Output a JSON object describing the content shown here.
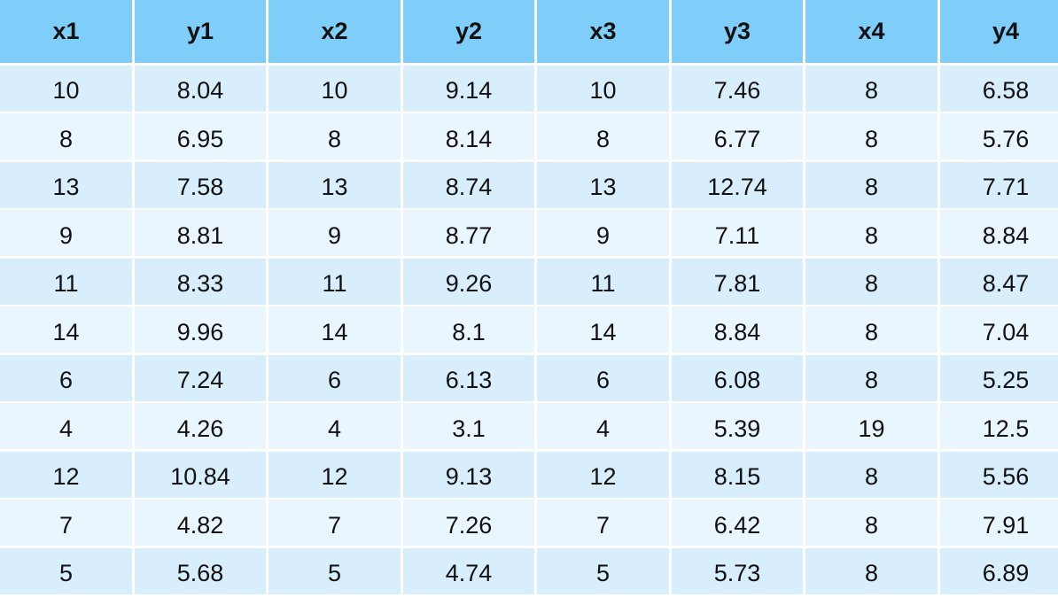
{
  "table": {
    "headers": [
      "x1",
      "y1",
      "x2",
      "y2",
      "x3",
      "y3",
      "x4",
      "y4"
    ],
    "rows": [
      [
        "10",
        "8.04",
        "10",
        "9.14",
        "10",
        "7.46",
        "8",
        "6.58"
      ],
      [
        "8",
        "6.95",
        "8",
        "8.14",
        "8",
        "6.77",
        "8",
        "5.76"
      ],
      [
        "13",
        "7.58",
        "13",
        "8.74",
        "13",
        "12.74",
        "8",
        "7.71"
      ],
      [
        "9",
        "8.81",
        "9",
        "8.77",
        "9",
        "7.11",
        "8",
        "8.84"
      ],
      [
        "11",
        "8.33",
        "11",
        "9.26",
        "11",
        "7.81",
        "8",
        "8.47"
      ],
      [
        "14",
        "9.96",
        "14",
        "8.1",
        "14",
        "8.84",
        "8",
        "7.04"
      ],
      [
        "6",
        "7.24",
        "6",
        "6.13",
        "6",
        "6.08",
        "8",
        "5.25"
      ],
      [
        "4",
        "4.26",
        "4",
        "3.1",
        "4",
        "5.39",
        "19",
        "12.5"
      ],
      [
        "12",
        "10.84",
        "12",
        "9.13",
        "12",
        "8.15",
        "8",
        "5.56"
      ],
      [
        "7",
        "4.82",
        "7",
        "7.26",
        "7",
        "6.42",
        "8",
        "7.91"
      ],
      [
        "5",
        "5.68",
        "5",
        "4.74",
        "5",
        "5.73",
        "8",
        "6.89"
      ]
    ]
  },
  "colors": {
    "header_bg": "#7fcdf9",
    "row_odd_bg": "#d8eefc",
    "row_even_bg": "#eaf6fe",
    "text": "#111111"
  }
}
